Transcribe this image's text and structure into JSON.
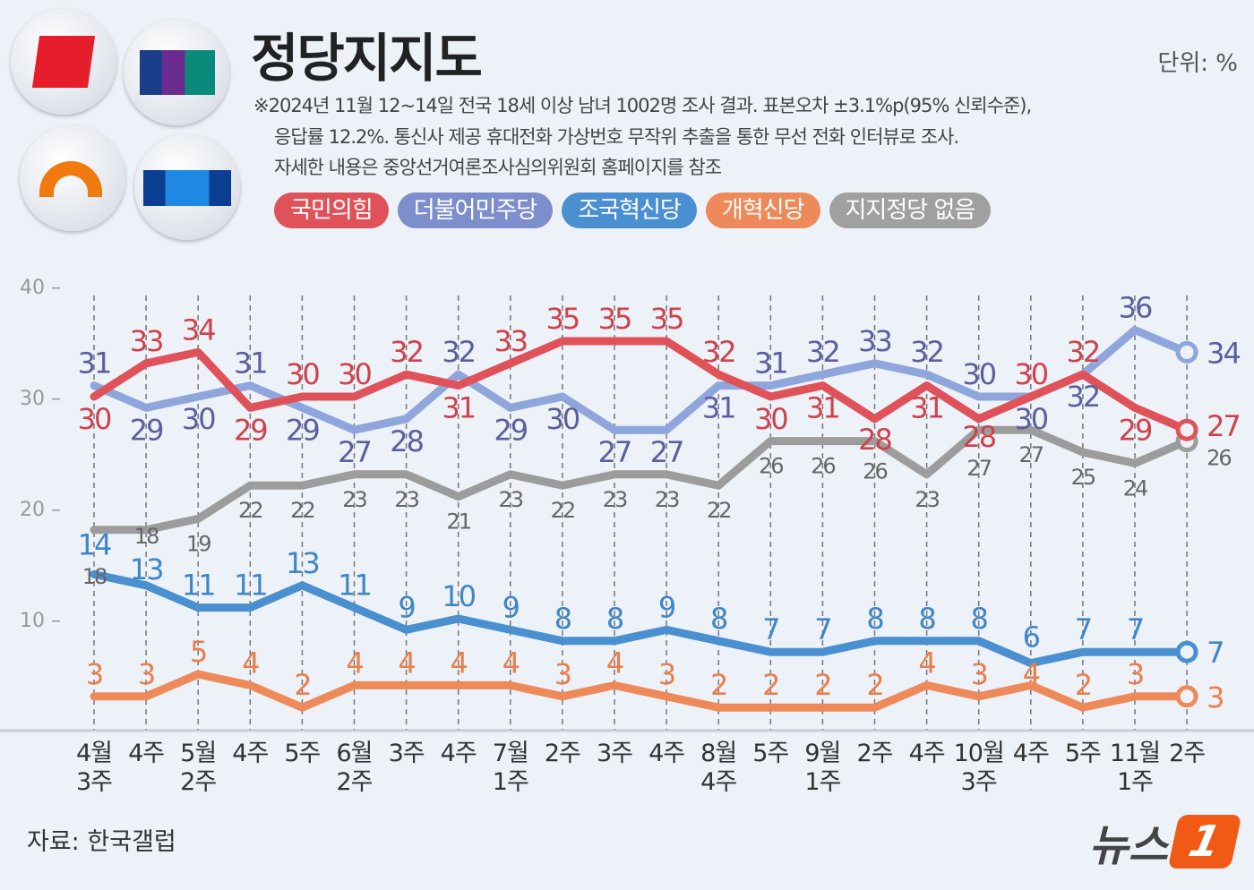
{
  "title": "정당지지도",
  "unit": "단위: %",
  "notes": [
    "※2024년 11월 12~14일 전국 18세 이상 남녀 1002명 조사 결과. 표본오차 ±3.1%p(95% 신뢰수준),",
    "응답률 12.2%. 통신사 제공 휴대전화 가상번호 무작위 추출을 통한 무선 전화 인터뷰로 조사.",
    "자세한 내용은 중앙선거여론조사심의위원회 홈페이지를 참조"
  ],
  "source": "자료: 한국갤럽",
  "brand": {
    "text": "뉴스",
    "mark": "1"
  },
  "chart_data": {
    "type": "line",
    "ylim": [
      0,
      40
    ],
    "yticks": [
      10,
      20,
      30,
      40
    ],
    "grid": false,
    "legend": "top",
    "categories": [
      [
        "4월",
        "3주"
      ],
      [
        "4주"
      ],
      [
        "5월",
        "2주"
      ],
      [
        "4주"
      ],
      [
        "5주"
      ],
      [
        "6월",
        "2주"
      ],
      [
        "3주"
      ],
      [
        "4주"
      ],
      [
        "7월",
        "1주"
      ],
      [
        "2주"
      ],
      [
        "3주"
      ],
      [
        "4주"
      ],
      [
        "8월",
        "4주"
      ],
      [
        "5주"
      ],
      [
        "9월",
        "1주"
      ],
      [
        "2주"
      ],
      [
        "4주"
      ],
      [
        "10월",
        "3주"
      ],
      [
        "4주"
      ],
      [
        "5주"
      ],
      [
        "11월",
        "1주"
      ],
      [
        "2주"
      ]
    ],
    "series": [
      {
        "name": "국민의힘",
        "color": "#e0525a",
        "label_color": "#d0414b",
        "values": [
          30,
          33,
          34,
          29,
          30,
          30,
          32,
          31,
          33,
          35,
          35,
          35,
          32,
          30,
          31,
          28,
          31,
          28,
          30,
          32,
          29,
          27
        ]
      },
      {
        "name": "더불어민주당",
        "color": "#8fa6dc",
        "label_color": "#5a5f9e",
        "values": [
          31,
          29,
          30,
          31,
          29,
          27,
          28,
          32,
          29,
          30,
          27,
          27,
          31,
          31,
          32,
          33,
          32,
          30,
          30,
          32,
          36,
          34
        ]
      },
      {
        "name": "조국혁신당",
        "color": "#4a8fd0",
        "label_color": "#3f86c8",
        "values": [
          14,
          13,
          11,
          11,
          13,
          11,
          9,
          10,
          9,
          8,
          8,
          9,
          8,
          7,
          7,
          8,
          8,
          8,
          6,
          7,
          7,
          7
        ]
      },
      {
        "name": "개혁신당",
        "color": "#ee8a5a",
        "label_color": "#e8804e",
        "values": [
          3,
          3,
          5,
          4,
          2,
          4,
          4,
          4,
          4,
          3,
          4,
          3,
          2,
          2,
          2,
          2,
          4,
          3,
          4,
          2,
          3,
          3
        ]
      },
      {
        "name": "지지정당 없음",
        "color": "#9c9c9c",
        "label_color": "#666",
        "values": [
          18,
          18,
          19,
          22,
          22,
          23,
          23,
          21,
          23,
          22,
          23,
          23,
          22,
          26,
          26,
          26,
          23,
          27,
          27,
          25,
          24,
          26
        ]
      }
    ]
  }
}
